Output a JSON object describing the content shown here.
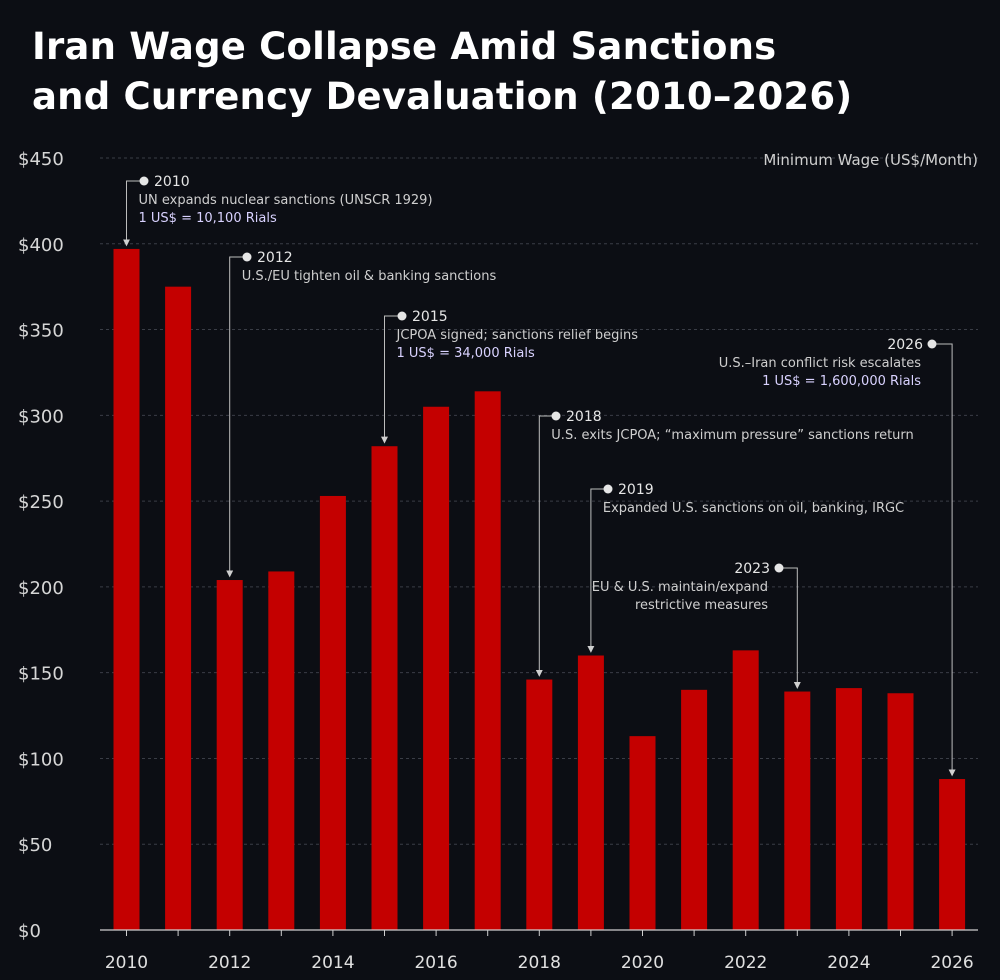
{
  "title": {
    "line1": "Iran Wage Collapse Amid Sanctions",
    "line2": "and Currency Devaluation (2010–2026)"
  },
  "colors": {
    "background": "#0c0e14",
    "bar": "#c40000",
    "grid": "#3a3d46",
    "rate_text": "#d9d2ff"
  },
  "chart_data": {
    "type": "bar",
    "title": "Iran Wage Collapse Amid Sanctions and Currency Devaluation (2010–2026)",
    "legend": "Minimum Wage (US$/Month)",
    "xlabel": "",
    "ylabel": "",
    "ylim": [
      0,
      450
    ],
    "yticks": [
      0,
      50,
      100,
      150,
      200,
      250,
      300,
      350,
      400,
      450
    ],
    "ytick_labels": [
      "$0",
      "$50",
      "$100",
      "$150",
      "$200",
      "$250",
      "$300",
      "$350",
      "$400",
      "$450"
    ],
    "categories": [
      "2010",
      "2011",
      "2012",
      "2013",
      "2014",
      "2015",
      "2016",
      "2017",
      "2018",
      "2019",
      "2020",
      "2021",
      "2022",
      "2023",
      "2024",
      "2025",
      "2026"
    ],
    "xtick_labels": [
      "2010",
      "2012",
      "2014",
      "2016",
      "2018",
      "2020",
      "2022",
      "2024",
      "2026"
    ],
    "values": [
      397,
      375,
      204,
      209,
      253,
      282,
      305,
      314,
      146,
      160,
      113,
      140,
      163,
      139,
      141,
      138,
      88
    ],
    "grid": true,
    "annotations": [
      {
        "year": "2010",
        "bar_index": 0,
        "lines": [
          "UN expands nuclear sanctions (UNSCR 1929)"
        ],
        "rate": "1 US$ = 10,100 Rials",
        "align": "left"
      },
      {
        "year": "2012",
        "bar_index": 2,
        "lines": [
          "U.S./EU tighten oil & banking sanctions"
        ],
        "rate": "",
        "align": "left"
      },
      {
        "year": "2015",
        "bar_index": 5,
        "lines": [
          "JCPOA signed; sanctions relief begins"
        ],
        "rate": "1 US$ = 34,000 Rials",
        "align": "left"
      },
      {
        "year": "2018",
        "bar_index": 8,
        "lines": [
          "U.S. exits JCPOA; “maximum pressure” sanctions return"
        ],
        "rate": "",
        "align": "left"
      },
      {
        "year": "2019",
        "bar_index": 9,
        "lines": [
          "Expanded U.S. sanctions on oil, banking, IRGC"
        ],
        "rate": "",
        "align": "left"
      },
      {
        "year": "2023",
        "bar_index": 13,
        "lines": [
          "EU & U.S. maintain/expand",
          "restrictive measures"
        ],
        "rate": "",
        "align": "right"
      },
      {
        "year": "2026",
        "bar_index": 16,
        "lines": [
          "U.S.–Iran conflict risk escalates"
        ],
        "rate": "1 US$ = 1,600,000 Rials",
        "align": "right"
      }
    ]
  }
}
